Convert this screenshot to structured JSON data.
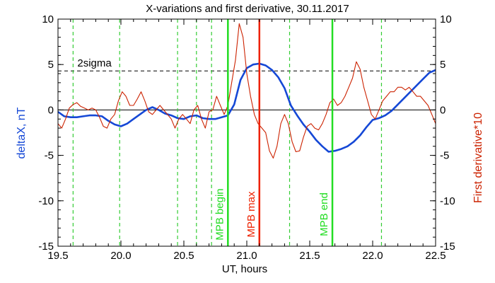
{
  "chart_data": {
    "type": "line",
    "title": "X-variations and first derivative, 30.11.2017",
    "xlabel": "UT, hours",
    "ylabel_left": "deltaX, nT",
    "ylabel_right": "First derivative*10",
    "xlim": [
      19.5,
      22.5
    ],
    "ylim": [
      -15,
      10
    ],
    "y2lim": [
      -15,
      10
    ],
    "x_ticks": [
      "19.5",
      "20.0",
      "20.5",
      "21.0",
      "21.5",
      "22.0",
      "22.5"
    ],
    "y_ticks_left": [
      "10",
      "5",
      "0",
      "-5",
      "-10",
      "-15"
    ],
    "y_ticks_right": [
      "10",
      "5",
      "0",
      "-5",
      "-10",
      "-15"
    ],
    "sigma_label": "2sigma",
    "sigma_level": 4.3,
    "colors": {
      "deltaX": "#1548d6",
      "derivative": "#cc2200",
      "mpb_begin": "#22dd22",
      "mpb_max": "#ee2200",
      "mpb_end": "#22dd22",
      "dashed_green": "#33cc33"
    },
    "markers": [
      {
        "label": "MPB begin",
        "x": 20.85,
        "color": "#22dd22"
      },
      {
        "label": "MPB max",
        "x": 21.1,
        "color": "#ee2200"
      },
      {
        "label": "MPB end",
        "x": 21.68,
        "color": "#22dd22"
      }
    ],
    "dashed_verticals": [
      19.62,
      19.99,
      20.45,
      20.6,
      20.72,
      21.34,
      22.07
    ],
    "series": [
      {
        "name": "deltaX",
        "axis": "left",
        "x": [
          19.5,
          19.55,
          19.6,
          19.65,
          19.7,
          19.75,
          19.8,
          19.85,
          19.9,
          19.95,
          20.0,
          20.05,
          20.1,
          20.15,
          20.2,
          20.25,
          20.3,
          20.35,
          20.4,
          20.45,
          20.5,
          20.55,
          20.6,
          20.65,
          20.7,
          20.75,
          20.8,
          20.85,
          20.9,
          20.95,
          21.0,
          21.05,
          21.1,
          21.15,
          21.2,
          21.25,
          21.3,
          21.35,
          21.4,
          21.45,
          21.5,
          21.55,
          21.6,
          21.65,
          21.7,
          21.75,
          21.8,
          21.85,
          21.9,
          21.95,
          22.0,
          22.05,
          22.1,
          22.15,
          22.2,
          22.25,
          22.3,
          22.35,
          22.4,
          22.45,
          22.5
        ],
        "values": [
          -0.2,
          -0.7,
          -0.8,
          -0.8,
          -0.7,
          -0.6,
          -0.6,
          -0.7,
          -1.2,
          -1.6,
          -1.8,
          -1.5,
          -1.0,
          -0.5,
          0.0,
          0.3,
          0.0,
          -0.4,
          -0.6,
          -0.9,
          -1.0,
          -0.7,
          -0.6,
          -0.9,
          -1.0,
          -1.0,
          -0.8,
          -0.6,
          0.6,
          3.3,
          4.6,
          5.0,
          5.1,
          4.9,
          4.4,
          3.6,
          2.4,
          0.5,
          -0.6,
          -1.6,
          -2.4,
          -3.3,
          -4.0,
          -4.6,
          -4.5,
          -4.3,
          -4.0,
          -3.5,
          -2.8,
          -1.9,
          -1.1,
          -0.9,
          -0.6,
          -0.1,
          0.6,
          1.3,
          2.0,
          2.7,
          3.4,
          4.1,
          4.4
        ]
      },
      {
        "name": "derivative",
        "axis": "right",
        "x": [
          19.5,
          19.53,
          19.56,
          19.59,
          19.62,
          19.65,
          19.68,
          19.71,
          19.74,
          19.77,
          19.8,
          19.83,
          19.86,
          19.89,
          19.92,
          19.95,
          19.98,
          20.01,
          20.04,
          20.07,
          20.1,
          20.13,
          20.16,
          20.19,
          20.22,
          20.25,
          20.28,
          20.31,
          20.34,
          20.37,
          20.4,
          20.43,
          20.46,
          20.49,
          20.52,
          20.55,
          20.58,
          20.61,
          20.64,
          20.67,
          20.7,
          20.73,
          20.76,
          20.79,
          20.82,
          20.85,
          20.88,
          20.91,
          20.94,
          20.97,
          21.0,
          21.03,
          21.06,
          21.09,
          21.12,
          21.15,
          21.18,
          21.21,
          21.24,
          21.27,
          21.3,
          21.33,
          21.36,
          21.39,
          21.42,
          21.45,
          21.48,
          21.51,
          21.54,
          21.57,
          21.6,
          21.63,
          21.66,
          21.69,
          21.72,
          21.75,
          21.78,
          21.81,
          21.84,
          21.87,
          21.9,
          21.93,
          21.96,
          21.99,
          22.02,
          22.05,
          22.08,
          22.11,
          22.14,
          22.17,
          22.2,
          22.23,
          22.26,
          22.29,
          22.32,
          22.35,
          22.38,
          22.41,
          22.44,
          22.47,
          22.5
        ],
        "values": [
          -1.5,
          -2.0,
          -1.0,
          0.2,
          0.6,
          0.8,
          0.4,
          0.2,
          0.0,
          0.2,
          0.0,
          -0.8,
          -1.8,
          -2.0,
          -1.0,
          -0.5,
          1.0,
          2.0,
          1.5,
          0.5,
          0.5,
          1.2,
          2.0,
          1.0,
          -0.2,
          -0.5,
          0.0,
          0.5,
          0.0,
          -0.5,
          -1.0,
          -2.0,
          -1.0,
          -0.5,
          -1.0,
          -1.5,
          0.0,
          0.5,
          -1.0,
          -2.0,
          -0.2,
          0.0,
          1.5,
          0.5,
          -0.5,
          0.5,
          3.0,
          5.5,
          9.5,
          8.0,
          4.0,
          1.5,
          -0.5,
          -1.5,
          -2.0,
          -2.5,
          -4.5,
          -5.3,
          -4.0,
          -1.5,
          -0.5,
          -1.5,
          -3.5,
          -4.6,
          -4.5,
          -3.0,
          -1.8,
          -1.5,
          -2.0,
          -2.2,
          -1.5,
          -0.5,
          0.8,
          1.2,
          0.5,
          0.8,
          1.5,
          2.5,
          3.5,
          5.3,
          4.5,
          2.5,
          1.0,
          -0.5,
          -1.0,
          0.0,
          1.0,
          1.5,
          2.0,
          2.0,
          2.5,
          2.5,
          2.2,
          2.5,
          2.0,
          1.5,
          1.5,
          1.0,
          0.5,
          -0.5,
          -1.5
        ]
      }
    ]
  }
}
